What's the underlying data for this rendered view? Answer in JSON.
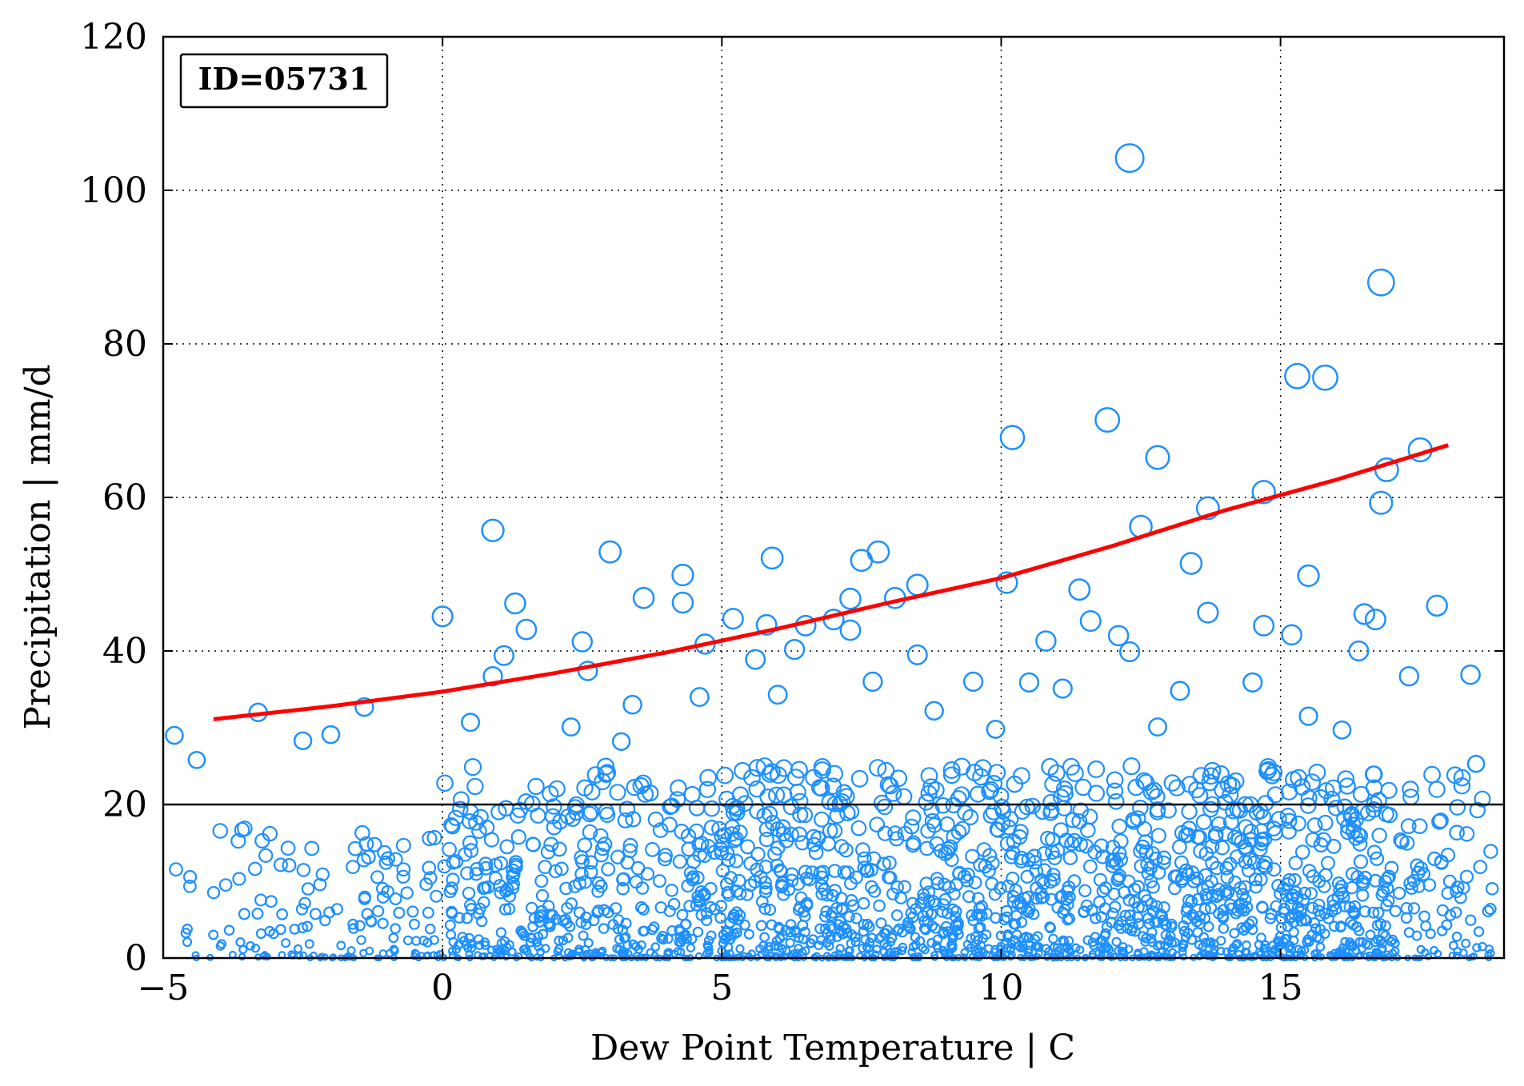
{
  "chart_data": {
    "type": "scatter",
    "xlabel": "Dew Point Temperature | C",
    "ylabel": "Precipitation | mm/d",
    "annotation": "ID=05731",
    "xlim": [
      -5,
      19
    ],
    "ylim": [
      0,
      120
    ],
    "xticks": [
      -5,
      0,
      5,
      10,
      15
    ],
    "yticks": [
      0,
      20,
      40,
      60,
      80,
      100,
      120
    ],
    "xtick_labels": [
      "−5",
      "0",
      "5",
      "10",
      "15"
    ],
    "ytick_labels": [
      "0",
      "20",
      "40",
      "60",
      "80",
      "100",
      "120"
    ],
    "grid": true,
    "threshold_line": 20,
    "colors": {
      "points": "#1e90ff",
      "fit": "#ff0000",
      "axes": "#000000"
    },
    "fit_curve": {
      "name": "",
      "x": [
        -4.1,
        -2,
        0,
        2,
        4,
        6,
        8,
        10,
        12,
        14,
        16,
        18
      ],
      "y": [
        31.1,
        32.8,
        34.7,
        37.1,
        39.8,
        42.9,
        46.3,
        49.5,
        53.7,
        58.3,
        62.3,
        66.8
      ]
    },
    "highlight_points": [
      {
        "x": 12.3,
        "y": 104.2
      },
      {
        "x": 16.8,
        "y": 88.0
      },
      {
        "x": 15.3,
        "y": 75.8
      },
      {
        "x": 15.8,
        "y": 75.6
      },
      {
        "x": 11.9,
        "y": 70.1
      },
      {
        "x": 10.2,
        "y": 67.8
      },
      {
        "x": 17.5,
        "y": 66.2
      },
      {
        "x": 12.8,
        "y": 65.2
      },
      {
        "x": 16.9,
        "y": 63.6
      },
      {
        "x": 14.7,
        "y": 60.7
      },
      {
        "x": 16.8,
        "y": 59.3
      },
      {
        "x": 13.7,
        "y": 58.6
      },
      {
        "x": 12.5,
        "y": 56.2
      },
      {
        "x": 0.9,
        "y": 55.7
      },
      {
        "x": 3.0,
        "y": 52.9
      },
      {
        "x": 7.8,
        "y": 52.9
      },
      {
        "x": 5.9,
        "y": 52.1
      },
      {
        "x": 7.5,
        "y": 51.8
      },
      {
        "x": 13.4,
        "y": 51.4
      },
      {
        "x": 4.3,
        "y": 49.9
      },
      {
        "x": 15.5,
        "y": 49.8
      },
      {
        "x": 10.1,
        "y": 48.9
      },
      {
        "x": 8.5,
        "y": 48.6
      },
      {
        "x": 11.4,
        "y": 48.0
      },
      {
        "x": 3.6,
        "y": 46.9
      },
      {
        "x": 7.3,
        "y": 46.8
      },
      {
        "x": 8.1,
        "y": 46.9
      },
      {
        "x": 1.3,
        "y": 46.2
      },
      {
        "x": 4.3,
        "y": 46.3
      },
      {
        "x": 17.8,
        "y": 45.9
      },
      {
        "x": 13.7,
        "y": 45.0
      },
      {
        "x": 0.0,
        "y": 44.5
      },
      {
        "x": 16.5,
        "y": 44.8
      },
      {
        "x": 5.2,
        "y": 44.2
      },
      {
        "x": 7.0,
        "y": 44.1
      },
      {
        "x": 11.6,
        "y": 43.9
      },
      {
        "x": 5.8,
        "y": 43.4
      },
      {
        "x": 6.5,
        "y": 43.3
      },
      {
        "x": 14.7,
        "y": 43.3
      },
      {
        "x": 16.7,
        "y": 44.1
      },
      {
        "x": 1.5,
        "y": 42.8
      },
      {
        "x": 7.3,
        "y": 42.7
      },
      {
        "x": 12.1,
        "y": 42.0
      },
      {
        "x": 15.2,
        "y": 42.1
      },
      {
        "x": 2.5,
        "y": 41.2
      },
      {
        "x": 10.8,
        "y": 41.3
      },
      {
        "x": 4.7,
        "y": 40.9
      },
      {
        "x": 6.3,
        "y": 40.2
      },
      {
        "x": 1.1,
        "y": 39.4
      },
      {
        "x": 8.5,
        "y": 39.5
      },
      {
        "x": 12.3,
        "y": 39.9
      },
      {
        "x": 16.4,
        "y": 40.0
      },
      {
        "x": 5.6,
        "y": 38.9
      },
      {
        "x": 0.9,
        "y": 36.7
      },
      {
        "x": 2.6,
        "y": 37.4
      },
      {
        "x": 7.7,
        "y": 36.0
      },
      {
        "x": 9.5,
        "y": 36.0
      },
      {
        "x": 10.5,
        "y": 35.9
      },
      {
        "x": 14.5,
        "y": 35.9
      },
      {
        "x": 17.3,
        "y": 36.7
      },
      {
        "x": 18.4,
        "y": 36.9
      },
      {
        "x": 3.4,
        "y": 33.0
      },
      {
        "x": 6.0,
        "y": 34.3
      },
      {
        "x": 11.1,
        "y": 35.1
      },
      {
        "x": 13.2,
        "y": 34.8
      },
      {
        "x": -3.3,
        "y": 32.0
      },
      {
        "x": -1.4,
        "y": 32.7
      },
      {
        "x": 4.6,
        "y": 34.0
      },
      {
        "x": 8.8,
        "y": 32.2
      },
      {
        "x": 0.5,
        "y": 30.7
      },
      {
        "x": 15.5,
        "y": 31.5
      },
      {
        "x": -4.8,
        "y": 29.0
      },
      {
        "x": -2.0,
        "y": 29.1
      },
      {
        "x": 2.3,
        "y": 30.1
      },
      {
        "x": 12.8,
        "y": 30.1
      },
      {
        "x": 16.1,
        "y": 29.7
      },
      {
        "x": 9.9,
        "y": 29.8
      },
      {
        "x": -4.4,
        "y": 25.8
      },
      {
        "x": -2.5,
        "y": 28.3
      },
      {
        "x": 3.2,
        "y": 28.2
      },
      {
        "x": 18.5,
        "y": 25.3
      }
    ],
    "bulk_cloud": {
      "description_note": "",
      "count": 2400
    }
  }
}
